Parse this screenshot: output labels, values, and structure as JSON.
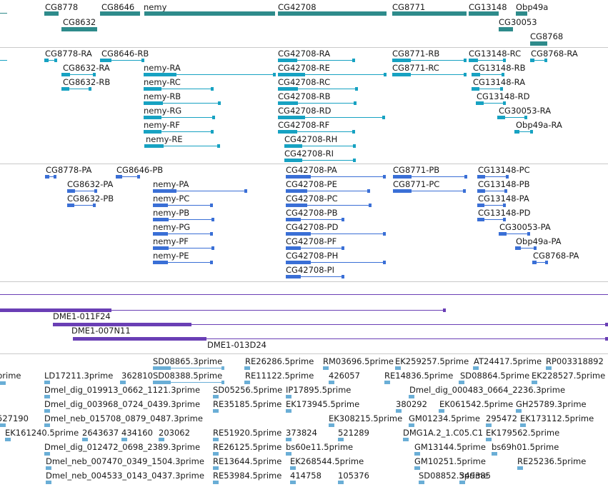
{
  "colors": {
    "gene": "#2e8b8b",
    "transcript": "#17a2c2",
    "protein": "#3a6fd6",
    "clone": "#6a3fb5",
    "est": "#6aaed6"
  },
  "genes": [
    {
      "label": "CG8778"
    },
    {
      "label": "CG8646"
    },
    {
      "label": "nemy"
    },
    {
      "label": "CG42708"
    },
    {
      "label": "CG8771"
    },
    {
      "label": "CG13148"
    },
    {
      "label": "Obp49a"
    },
    {
      "label": "CG8632"
    },
    {
      "label": "CG30053"
    },
    {
      "label": "CG8768"
    }
  ],
  "transcripts": [
    {
      "label": "CG8778-RA"
    },
    {
      "label": "CG8646-RB"
    },
    {
      "label": "CG42708-RA"
    },
    {
      "label": "CG8771-RB"
    },
    {
      "label": "CG13148-RC"
    },
    {
      "label": "CG8768-RA"
    },
    {
      "label": "CG8632-RA"
    },
    {
      "label": "nemy-RA"
    },
    {
      "label": "CG42708-RE"
    },
    {
      "label": "CG8771-RC"
    },
    {
      "label": "CG13148-RB"
    },
    {
      "label": "CG8632-RB"
    },
    {
      "label": "nemy-RC"
    },
    {
      "label": "CG42708-RC"
    },
    {
      "label": "CG13148-RA"
    },
    {
      "label": "nemy-RB"
    },
    {
      "label": "CG42708-RB"
    },
    {
      "label": "CG13148-RD"
    },
    {
      "label": "nemy-RG"
    },
    {
      "label": "CG42708-RD"
    },
    {
      "label": "CG30053-RA"
    },
    {
      "label": "nemy-RF"
    },
    {
      "label": "CG42708-RF"
    },
    {
      "label": "Obp49a-RA"
    },
    {
      "label": "nemy-RE"
    },
    {
      "label": "CG42708-RH"
    },
    {
      "label": "CG42708-RI"
    }
  ],
  "proteins": [
    {
      "label": "CG8778-PA"
    },
    {
      "label": "CG8646-PB"
    },
    {
      "label": "CG42708-PA"
    },
    {
      "label": "CG8771-PB"
    },
    {
      "label": "CG13148-PC"
    },
    {
      "label": "CG8632-PA"
    },
    {
      "label": "nemy-PA"
    },
    {
      "label": "CG42708-PE"
    },
    {
      "label": "CG8771-PC"
    },
    {
      "label": "CG13148-PB"
    },
    {
      "label": "CG8632-PB"
    },
    {
      "label": "nemy-PC"
    },
    {
      "label": "CG42708-PC"
    },
    {
      "label": "CG13148-PA"
    },
    {
      "label": "nemy-PB"
    },
    {
      "label": "CG42708-PB"
    },
    {
      "label": "CG13148-PD"
    },
    {
      "label": "nemy-PG"
    },
    {
      "label": "CG42708-PD"
    },
    {
      "label": "CG30053-PA"
    },
    {
      "label": "nemy-PF"
    },
    {
      "label": "CG42708-PF"
    },
    {
      "label": "Obp49a-PA"
    },
    {
      "label": "nemy-PE"
    },
    {
      "label": "CG42708-PH"
    },
    {
      "label": "CG8768-PA"
    },
    {
      "label": "CG42708-PI"
    }
  ],
  "clones": [
    {
      "label": "DME1-011F24"
    },
    {
      "label": "DME1-007N11"
    },
    {
      "label": "DME1-013D24"
    }
  ],
  "ests": [
    {
      "label": "SD08865.3prime"
    },
    {
      "label": "RE26286.5prime"
    },
    {
      "label": "RM03696.5prime"
    },
    {
      "label": "EK259257.5prime"
    },
    {
      "label": "AT24417.5prime"
    },
    {
      "label": "RP003318892"
    },
    {
      "label": "prime"
    },
    {
      "label": "LD17211.3prime"
    },
    {
      "label": "362810"
    },
    {
      "label": "SD08388.5prime"
    },
    {
      "label": "RE11122.5prime"
    },
    {
      "label": "426057"
    },
    {
      "label": "RE14836.5prime"
    },
    {
      "label": "SD08864.5prime"
    },
    {
      "label": "EK228527.5prime"
    },
    {
      "label": "Dmel_dig_019913_0662_1121.3prime"
    },
    {
      "label": "SD05256.5prime"
    },
    {
      "label": "IP17895.5prime"
    },
    {
      "label": "Dmel_dig_000483_0664_2236.3prime"
    },
    {
      "label": "Dmel_dig_003968_0724_0439.3prime"
    },
    {
      "label": "RE35185.5prime"
    },
    {
      "label": "EK173945.5prime"
    },
    {
      "label": "380292"
    },
    {
      "label": "EK061542.5prime"
    },
    {
      "label": "GH25789.3prime"
    },
    {
      "label": "527190"
    },
    {
      "label": "Dmel_neb_015708_0879_0487.3prime"
    },
    {
      "label": "EK308215.5prime"
    },
    {
      "label": "GM01234.5prime"
    },
    {
      "label": "295472"
    },
    {
      "label": "EK173112.5prime"
    },
    {
      "label": "EK161240.5prime"
    },
    {
      "label": "2643637"
    },
    {
      "label": "434160"
    },
    {
      "label": "203062"
    },
    {
      "label": "RE51920.5prime"
    },
    {
      "label": "373824"
    },
    {
      "label": "521289"
    },
    {
      "label": "DMG1A.2_1.C05.C1"
    },
    {
      "label": "EK179562.5prime"
    },
    {
      "label": "Dmel_dig_012472_0698_2389.3prime"
    },
    {
      "label": "RE26125.5prime"
    },
    {
      "label": "bs60e11.5prime"
    },
    {
      "label": "GM13144.5prime"
    },
    {
      "label": "bs69h01.5prime"
    },
    {
      "label": "Dmel_neb_007470_0349_1504.3prime"
    },
    {
      "label": "RE13644.5prime"
    },
    {
      "label": "EK268544.5prime"
    },
    {
      "label": "GM10251.5prime"
    },
    {
      "label": "RE25236.5prime"
    },
    {
      "label": "Dmel_neb_004533_0143_0437.3prime"
    },
    {
      "label": "RE53984.5prime"
    },
    {
      "label": "414758"
    },
    {
      "label": "105376"
    },
    {
      "label": "SD08852.5prime"
    },
    {
      "label": "349385"
    }
  ]
}
